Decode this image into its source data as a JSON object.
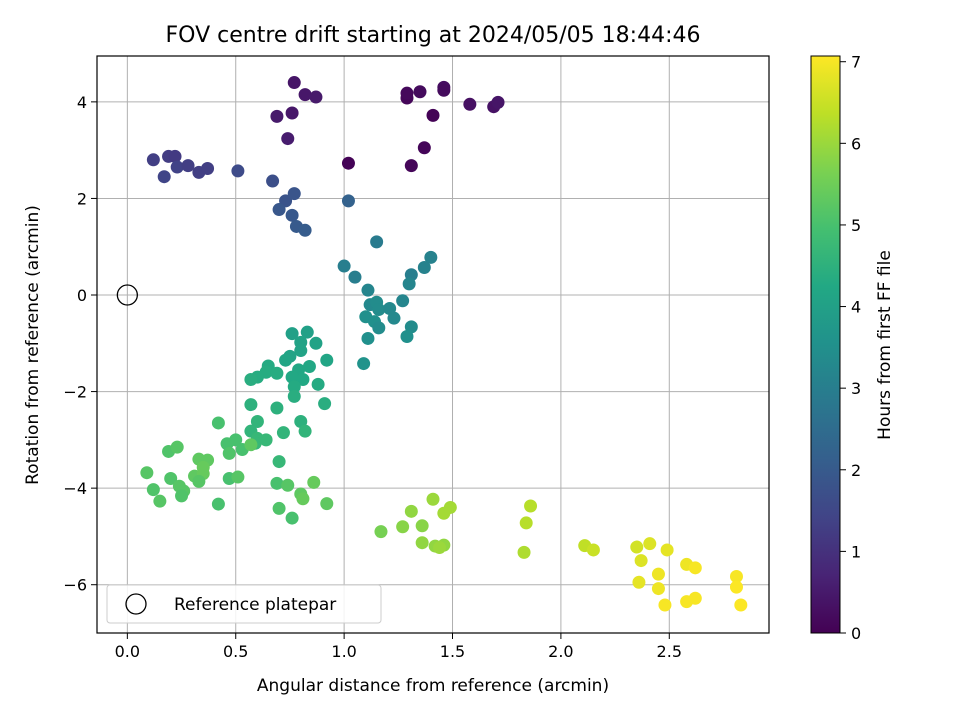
{
  "chart_data": {
    "type": "scatter",
    "title": "FOV centre drift starting at 2024/05/05 18:44:46",
    "xlabel": "Angular distance from reference (arcmin)",
    "ylabel": "Rotation from reference (arcmin)",
    "xlim": [
      -0.14,
      2.96
    ],
    "ylim": [
      -7.0,
      4.95
    ],
    "xticks": [
      0.0,
      0.5,
      1.0,
      1.5,
      2.0,
      2.5
    ],
    "xtick_labels": [
      "0.0",
      "0.5",
      "1.0",
      "1.5",
      "2.0",
      "2.5"
    ],
    "yticks": [
      -6,
      -4,
      -2,
      0,
      2,
      4
    ],
    "ytick_labels": [
      "−6",
      "−4",
      "−2",
      "0",
      "2",
      "4"
    ],
    "grid": true,
    "legend": {
      "placement": "lower-left",
      "entries": [
        "Reference platepar"
      ]
    },
    "colorbar": {
      "label": "Hours from first FF file",
      "range": [
        0,
        7.07
      ],
      "ticks": [
        0,
        1,
        2,
        3,
        4,
        5,
        6,
        7
      ],
      "tick_labels": [
        "0",
        "1",
        "2",
        "3",
        "4",
        "5",
        "6",
        "7"
      ],
      "colormap": "viridis"
    },
    "reference_point": {
      "x": 0.0,
      "y": 0.0,
      "label": "Reference platepar"
    },
    "points": [
      {
        "x": 0.77,
        "y": 4.4,
        "c": 0.4
      },
      {
        "x": 0.82,
        "y": 4.15,
        "c": 0.45
      },
      {
        "x": 0.87,
        "y": 4.1,
        "c": 0.5
      },
      {
        "x": 0.69,
        "y": 3.7,
        "c": 0.5
      },
      {
        "x": 0.76,
        "y": 3.77,
        "c": 0.45
      },
      {
        "x": 0.74,
        "y": 3.24,
        "c": 0.55
      },
      {
        "x": 1.02,
        "y": 2.73,
        "c": 0.05
      },
      {
        "x": 1.29,
        "y": 4.08,
        "c": 0.1
      },
      {
        "x": 1.29,
        "y": 4.18,
        "c": 0.15
      },
      {
        "x": 1.35,
        "y": 4.21,
        "c": 0.2
      },
      {
        "x": 1.46,
        "y": 4.3,
        "c": 0.25
      },
      {
        "x": 1.46,
        "y": 4.24,
        "c": 0.2
      },
      {
        "x": 1.41,
        "y": 3.72,
        "c": 0.05
      },
      {
        "x": 1.37,
        "y": 3.05,
        "c": 0.08
      },
      {
        "x": 1.31,
        "y": 2.68,
        "c": 0.1
      },
      {
        "x": 1.58,
        "y": 3.95,
        "c": 0.3
      },
      {
        "x": 1.69,
        "y": 3.9,
        "c": 0.35
      },
      {
        "x": 1.71,
        "y": 3.99,
        "c": 0.4
      },
      {
        "x": 0.12,
        "y": 2.8,
        "c": 1.3
      },
      {
        "x": 0.19,
        "y": 2.87,
        "c": 1.25
      },
      {
        "x": 0.22,
        "y": 2.87,
        "c": 1.2
      },
      {
        "x": 0.17,
        "y": 2.45,
        "c": 1.45
      },
      {
        "x": 0.23,
        "y": 2.65,
        "c": 1.4
      },
      {
        "x": 0.28,
        "y": 2.68,
        "c": 1.3
      },
      {
        "x": 0.33,
        "y": 2.54,
        "c": 1.3
      },
      {
        "x": 0.37,
        "y": 2.62,
        "c": 1.3
      },
      {
        "x": 0.51,
        "y": 2.57,
        "c": 1.6
      },
      {
        "x": 0.67,
        "y": 2.36,
        "c": 1.7
      },
      {
        "x": 0.73,
        "y": 1.95,
        "c": 1.8
      },
      {
        "x": 0.77,
        "y": 2.1,
        "c": 1.85
      },
      {
        "x": 0.7,
        "y": 1.77,
        "c": 1.9
      },
      {
        "x": 0.76,
        "y": 1.65,
        "c": 1.95
      },
      {
        "x": 0.78,
        "y": 1.42,
        "c": 2.0
      },
      {
        "x": 0.82,
        "y": 1.34,
        "c": 2.05
      },
      {
        "x": 1.02,
        "y": 1.95,
        "c": 2.2
      },
      {
        "x": 1.15,
        "y": 1.1,
        "c": 2.9
      },
      {
        "x": 1.4,
        "y": 0.78,
        "c": 3.1
      },
      {
        "x": 1.37,
        "y": 0.57,
        "c": 3.1
      },
      {
        "x": 1.31,
        "y": 0.42,
        "c": 3.0
      },
      {
        "x": 1.3,
        "y": 0.23,
        "c": 3.2
      },
      {
        "x": 1.0,
        "y": 0.6,
        "c": 3.0
      },
      {
        "x": 1.05,
        "y": 0.37,
        "c": 3.0
      },
      {
        "x": 1.11,
        "y": 0.1,
        "c": 3.2
      },
      {
        "x": 1.12,
        "y": -0.2,
        "c": 3.3
      },
      {
        "x": 1.15,
        "y": -0.15,
        "c": 3.4
      },
      {
        "x": 1.16,
        "y": -0.3,
        "c": 3.4
      },
      {
        "x": 1.21,
        "y": -0.28,
        "c": 3.3
      },
      {
        "x": 1.1,
        "y": -0.45,
        "c": 3.5
      },
      {
        "x": 1.14,
        "y": -0.55,
        "c": 3.5
      },
      {
        "x": 1.16,
        "y": -0.68,
        "c": 3.4
      },
      {
        "x": 1.11,
        "y": -0.9,
        "c": 3.5
      },
      {
        "x": 1.09,
        "y": -1.42,
        "c": 3.6
      },
      {
        "x": 1.27,
        "y": -0.12,
        "c": 3.2
      },
      {
        "x": 1.23,
        "y": -0.48,
        "c": 3.3
      },
      {
        "x": 1.31,
        "y": -0.66,
        "c": 3.4
      },
      {
        "x": 1.29,
        "y": -0.86,
        "c": 3.5
      },
      {
        "x": 0.76,
        "y": -0.8,
        "c": 4.0
      },
      {
        "x": 0.83,
        "y": -0.77,
        "c": 4.0
      },
      {
        "x": 0.8,
        "y": -0.98,
        "c": 4.05
      },
      {
        "x": 0.8,
        "y": -1.15,
        "c": 4.1
      },
      {
        "x": 0.75,
        "y": -1.27,
        "c": 4.1
      },
      {
        "x": 0.73,
        "y": -1.35,
        "c": 4.15
      },
      {
        "x": 0.87,
        "y": -1.0,
        "c": 4.05
      },
      {
        "x": 0.92,
        "y": -1.35,
        "c": 4.15
      },
      {
        "x": 0.84,
        "y": -1.48,
        "c": 4.2
      },
      {
        "x": 0.79,
        "y": -1.55,
        "c": 4.2
      },
      {
        "x": 0.76,
        "y": -1.7,
        "c": 4.25
      },
      {
        "x": 0.81,
        "y": -1.75,
        "c": 4.25
      },
      {
        "x": 0.77,
        "y": -1.9,
        "c": 4.3
      },
      {
        "x": 0.88,
        "y": -1.85,
        "c": 4.3
      },
      {
        "x": 0.65,
        "y": -1.47,
        "c": 4.3
      },
      {
        "x": 0.64,
        "y": -1.6,
        "c": 4.35
      },
      {
        "x": 0.6,
        "y": -1.7,
        "c": 4.35
      },
      {
        "x": 0.57,
        "y": -1.75,
        "c": 4.4
      },
      {
        "x": 0.69,
        "y": -1.62,
        "c": 4.35
      },
      {
        "x": 0.91,
        "y": -2.25,
        "c": 4.4
      },
      {
        "x": 0.77,
        "y": -2.1,
        "c": 4.4
      },
      {
        "x": 0.69,
        "y": -2.34,
        "c": 4.5
      },
      {
        "x": 0.57,
        "y": -2.27,
        "c": 4.5
      },
      {
        "x": 0.8,
        "y": -2.62,
        "c": 4.5
      },
      {
        "x": 0.82,
        "y": -2.82,
        "c": 4.6
      },
      {
        "x": 0.72,
        "y": -2.85,
        "c": 4.6
      },
      {
        "x": 0.6,
        "y": -2.62,
        "c": 4.6
      },
      {
        "x": 0.57,
        "y": -2.82,
        "c": 4.6
      },
      {
        "x": 0.6,
        "y": -2.97,
        "c": 4.7
      },
      {
        "x": 0.59,
        "y": -3.07,
        "c": 4.7
      },
      {
        "x": 0.64,
        "y": -3.0,
        "c": 4.7
      },
      {
        "x": 0.7,
        "y": -3.45,
        "c": 4.7
      },
      {
        "x": 0.42,
        "y": -2.65,
        "c": 5.0
      },
      {
        "x": 0.46,
        "y": -3.08,
        "c": 5.0
      },
      {
        "x": 0.5,
        "y": -3.0,
        "c": 5.0
      },
      {
        "x": 0.53,
        "y": -3.2,
        "c": 5.0
      },
      {
        "x": 0.47,
        "y": -3.28,
        "c": 5.1
      },
      {
        "x": 0.57,
        "y": -3.1,
        "c": 5.3
      },
      {
        "x": 0.19,
        "y": -3.24,
        "c": 5.1
      },
      {
        "x": 0.23,
        "y": -3.15,
        "c": 5.2
      },
      {
        "x": 0.33,
        "y": -3.4,
        "c": 5.3
      },
      {
        "x": 0.37,
        "y": -3.42,
        "c": 5.3
      },
      {
        "x": 0.35,
        "y": -3.57,
        "c": 5.4
      },
      {
        "x": 0.31,
        "y": -3.75,
        "c": 5.3
      },
      {
        "x": 0.35,
        "y": -3.7,
        "c": 5.4
      },
      {
        "x": 0.33,
        "y": -3.86,
        "c": 5.2
      },
      {
        "x": 0.2,
        "y": -3.8,
        "c": 5.1
      },
      {
        "x": 0.24,
        "y": -3.96,
        "c": 5.2
      },
      {
        "x": 0.26,
        "y": -4.06,
        "c": 5.2
      },
      {
        "x": 0.25,
        "y": -4.16,
        "c": 5.1
      },
      {
        "x": 0.47,
        "y": -3.8,
        "c": 5.0
      },
      {
        "x": 0.51,
        "y": -3.77,
        "c": 5.2
      },
      {
        "x": 0.42,
        "y": -4.33,
        "c": 5.0
      },
      {
        "x": 0.09,
        "y": -3.68,
        "c": 5.2
      },
      {
        "x": 0.12,
        "y": -4.03,
        "c": 5.1
      },
      {
        "x": 0.15,
        "y": -4.27,
        "c": 5.2
      },
      {
        "x": 0.69,
        "y": -3.9,
        "c": 5.0
      },
      {
        "x": 0.74,
        "y": -3.94,
        "c": 5.2
      },
      {
        "x": 0.8,
        "y": -4.12,
        "c": 5.3
      },
      {
        "x": 0.81,
        "y": -4.22,
        "c": 5.4
      },
      {
        "x": 0.86,
        "y": -3.88,
        "c": 5.4
      },
      {
        "x": 0.92,
        "y": -4.32,
        "c": 5.3
      },
      {
        "x": 0.7,
        "y": -4.42,
        "c": 5.1
      },
      {
        "x": 0.76,
        "y": -4.62,
        "c": 5.0
      },
      {
        "x": 1.17,
        "y": -4.9,
        "c": 5.6
      },
      {
        "x": 1.27,
        "y": -4.8,
        "c": 5.8
      },
      {
        "x": 1.31,
        "y": -4.48,
        "c": 5.9
      },
      {
        "x": 1.36,
        "y": -4.78,
        "c": 5.8
      },
      {
        "x": 1.36,
        "y": -5.13,
        "c": 5.9
      },
      {
        "x": 1.41,
        "y": -4.23,
        "c": 6.0
      },
      {
        "x": 1.42,
        "y": -5.2,
        "c": 5.9
      },
      {
        "x": 1.46,
        "y": -5.18,
        "c": 5.9
      },
      {
        "x": 1.44,
        "y": -5.23,
        "c": 6.0
      },
      {
        "x": 1.46,
        "y": -4.52,
        "c": 6.1
      },
      {
        "x": 1.49,
        "y": -4.4,
        "c": 6.1
      },
      {
        "x": 1.83,
        "y": -5.33,
        "c": 6.2
      },
      {
        "x": 1.84,
        "y": -4.72,
        "c": 6.3
      },
      {
        "x": 1.86,
        "y": -4.37,
        "c": 6.3
      },
      {
        "x": 2.11,
        "y": -5.19,
        "c": 6.4
      },
      {
        "x": 2.15,
        "y": -5.28,
        "c": 6.5
      },
      {
        "x": 2.35,
        "y": -5.22,
        "c": 6.6
      },
      {
        "x": 2.41,
        "y": -5.15,
        "c": 6.7
      },
      {
        "x": 2.37,
        "y": -5.5,
        "c": 6.7
      },
      {
        "x": 2.36,
        "y": -5.95,
        "c": 6.8
      },
      {
        "x": 2.49,
        "y": -5.28,
        "c": 6.8
      },
      {
        "x": 2.45,
        "y": -5.78,
        "c": 6.9
      },
      {
        "x": 2.45,
        "y": -6.08,
        "c": 6.9
      },
      {
        "x": 2.48,
        "y": -6.42,
        "c": 7.0
      },
      {
        "x": 2.58,
        "y": -5.58,
        "c": 6.9
      },
      {
        "x": 2.62,
        "y": -5.65,
        "c": 7.0
      },
      {
        "x": 2.58,
        "y": -6.35,
        "c": 7.0
      },
      {
        "x": 2.62,
        "y": -6.28,
        "c": 7.0
      },
      {
        "x": 2.81,
        "y": -5.83,
        "c": 7.0
      },
      {
        "x": 2.81,
        "y": -6.05,
        "c": 7.05
      },
      {
        "x": 2.83,
        "y": -6.42,
        "c": 7.05
      }
    ]
  }
}
